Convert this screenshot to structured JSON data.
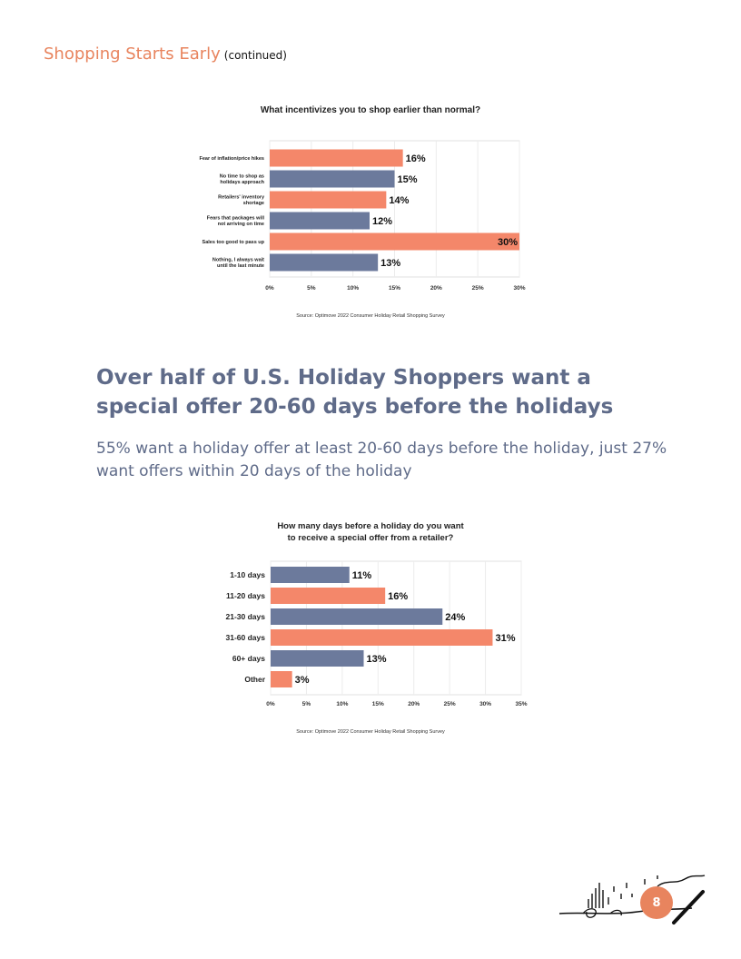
{
  "header": {
    "title": "Shopping Starts Early",
    "subtitle": "(continued)"
  },
  "section": {
    "heading": "Over half of U.S. Holiday Shoppers want a special offer 20-60 days before the holidays",
    "subtext": "55% want a holiday offer at least 20-60 days before the holiday, just 27% want offers within 20 days of the holiday"
  },
  "page_number": "8",
  "colors": {
    "orange": "#F4876A",
    "slate": "#6C7A9C",
    "accent": "#E8845E"
  },
  "chart_data": [
    {
      "type": "bar",
      "orientation": "horizontal",
      "title": "What incentivizes you to shop earlier than normal?",
      "categories": [
        "Fear of inflation/price hikes",
        "No time to shop as holidays approach",
        "Retailers' inventory shortage",
        "Fears that packages will not arriving on time",
        "Sales too good to pass up",
        "Nothing, I always wait until the last minute"
      ],
      "category_lines": [
        [
          "Fear of inflation/price hikes"
        ],
        [
          "No time to shop as",
          "holidays approach"
        ],
        [
          "Retailers' inventory",
          "shortage"
        ],
        [
          "Fears that packages will",
          "not arriving on time"
        ],
        [
          "Sales too good to pass up"
        ],
        [
          "Nothing, I always wait",
          "until the last minute"
        ]
      ],
      "values": [
        16,
        15,
        14,
        12,
        30,
        13
      ],
      "value_labels": [
        "16%",
        "15%",
        "14%",
        "12%",
        "30%",
        "13%"
      ],
      "bar_colors": [
        "orange",
        "slate",
        "orange",
        "slate",
        "orange",
        "slate"
      ],
      "xlim": [
        0,
        30
      ],
      "xticks": [
        "0%",
        "5%",
        "10%",
        "15%",
        "20%",
        "25%",
        "30%"
      ],
      "grid": true,
      "source": "Source: Optimove 2022 Consumer Holiday Retail Shopping Survey"
    },
    {
      "type": "bar",
      "orientation": "horizontal",
      "title_lines": [
        "How many days before a holiday do you want",
        "to receive a special offer from a retailer?"
      ],
      "categories": [
        "1-10 days",
        "11-20 days",
        "21-30 days",
        "31-60 days",
        "60+ days",
        "Other"
      ],
      "values": [
        11,
        16,
        24,
        31,
        13,
        3
      ],
      "value_labels": [
        "11%",
        "16%",
        "24%",
        "31%",
        "13%",
        "3%"
      ],
      "bar_colors": [
        "slate",
        "orange",
        "slate",
        "orange",
        "slate",
        "orange"
      ],
      "xlim": [
        0,
        35
      ],
      "xticks": [
        "0%",
        "5%",
        "10%",
        "15%",
        "20%",
        "25%",
        "30%",
        "35%"
      ],
      "grid": true,
      "source": "Source: Optimove 2022 Consumer Holiday Retail Shopping Survey"
    }
  ]
}
